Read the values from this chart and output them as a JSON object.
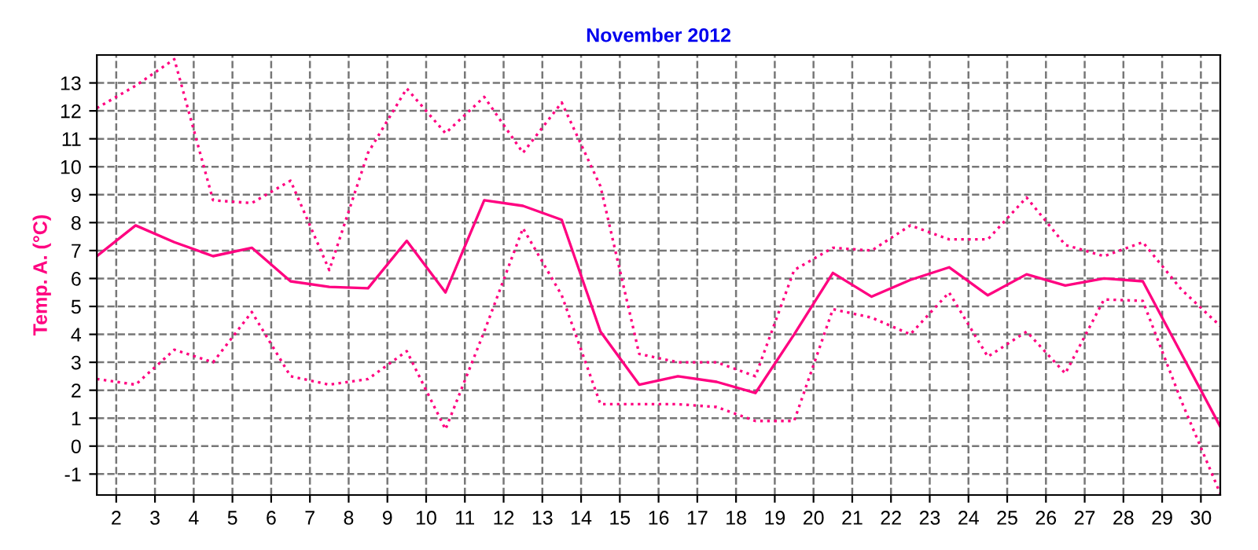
{
  "chart_data": {
    "type": "line",
    "title": "November 2012",
    "ylabel": "Temp. A. (°C)",
    "x": [
      1.5,
      2.5,
      3.5,
      4.5,
      5.5,
      6.5,
      7.5,
      8.5,
      9.5,
      10.5,
      11.5,
      12.5,
      13.5,
      14.5,
      15.5,
      16.5,
      17.5,
      18.5,
      19.5,
      20.5,
      21.5,
      22.5,
      23.5,
      24.5,
      25.5,
      26.5,
      27.5,
      28.5,
      29.5,
      30.5
    ],
    "series": [
      {
        "color": "#ff0080",
        "line_style": "dotted",
        "values": [
          12.1,
          12.9,
          13.85,
          8.8,
          8.7,
          9.5,
          6.3,
          10.5,
          12.8,
          11.2,
          12.5,
          10.5,
          12.3,
          9.3,
          3.3,
          3.0,
          3.0,
          2.5,
          6.3,
          7.1,
          7.0,
          7.9,
          7.4,
          7.4,
          8.9,
          7.2,
          6.8,
          7.3,
          5.6,
          4.3
        ]
      },
      {
        "color": "#ff0080",
        "line_style": "solid",
        "values": [
          6.8,
          7.9,
          7.3,
          6.8,
          7.1,
          5.9,
          5.7,
          5.65,
          7.35,
          5.5,
          8.8,
          8.6,
          8.1,
          4.1,
          2.2,
          2.5,
          2.3,
          1.9,
          4.0,
          6.2,
          5.35,
          5.95,
          6.4,
          5.4,
          6.15,
          5.75,
          6.0,
          5.9,
          3.3,
          0.7
        ]
      },
      {
        "color": "#ff0080",
        "line_style": "dotted",
        "values": [
          2.4,
          2.2,
          3.45,
          3.0,
          4.8,
          2.5,
          2.2,
          2.4,
          3.4,
          0.6,
          4.1,
          7.8,
          5.4,
          1.5,
          1.5,
          1.5,
          1.4,
          0.9,
          0.9,
          4.9,
          4.6,
          4.0,
          5.5,
          3.2,
          4.1,
          2.6,
          5.25,
          5.2,
          1.6,
          -1.7
        ]
      }
    ],
    "xlim": [
      1.5,
      30.5
    ],
    "xticks": [
      2,
      3,
      4,
      5,
      6,
      7,
      8,
      9,
      10,
      11,
      12,
      13,
      14,
      15,
      16,
      17,
      18,
      19,
      20,
      21,
      22,
      23,
      24,
      25,
      26,
      27,
      28,
      29,
      30
    ],
    "ylim": [
      -1.75,
      14
    ],
    "yticks": [
      -1,
      0,
      1,
      2,
      3,
      4,
      5,
      6,
      7,
      8,
      9,
      10,
      11,
      12,
      13
    ],
    "grid": true,
    "marker": "none"
  }
}
